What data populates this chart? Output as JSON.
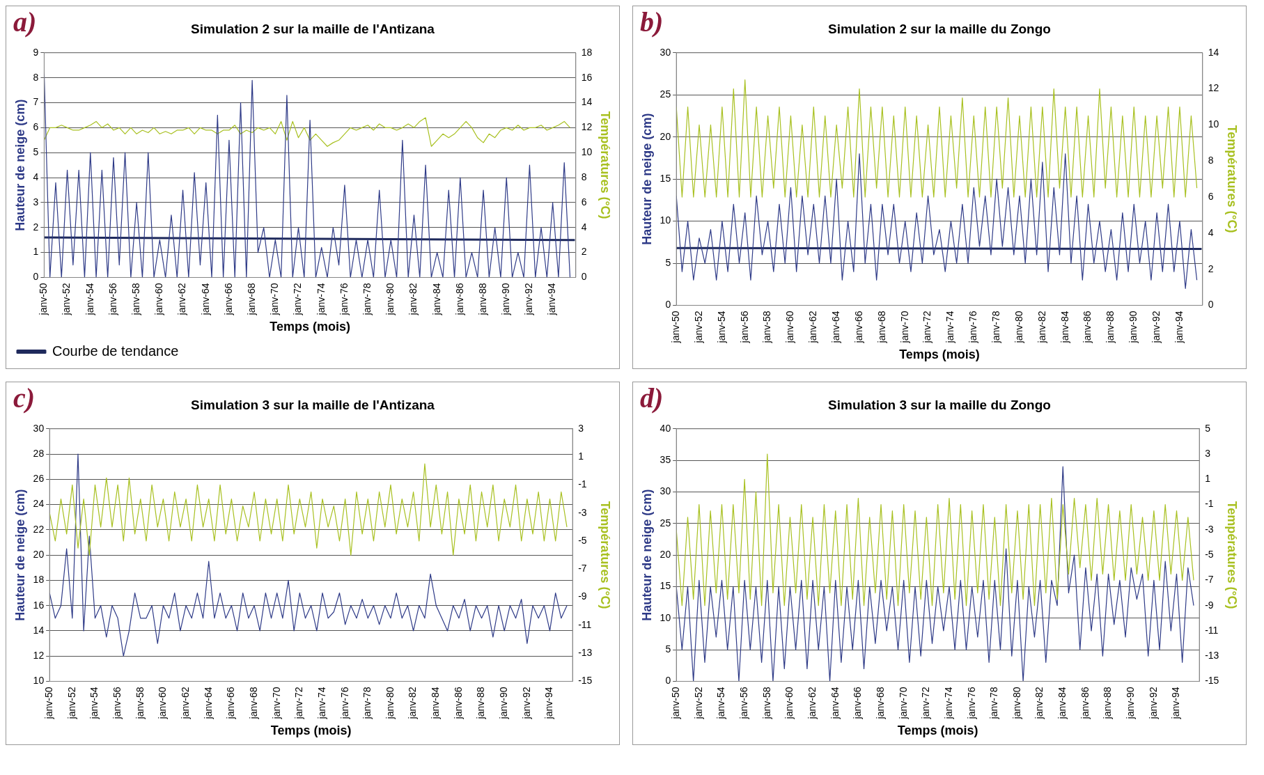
{
  "chart_data": [
    {
      "type": "line",
      "title": "Simulation 2 sur la maille de l'Antizana",
      "annotations": [
        "a)"
      ],
      "xlabel": "Temps (mois)",
      "ylabel": "Hauteur de neige (cm)",
      "y2label": "Températures (°C)",
      "grid": "y",
      "legend": "bottom left",
      "marker": "none",
      "line_style": "solid",
      "x": [
        "1950-01",
        "1950-07",
        "1951-01",
        "1951-07",
        "1952-01",
        "1952-07",
        "1953-01",
        "1953-07",
        "1954-01",
        "1954-07",
        "1955-01",
        "1955-07",
        "1956-01",
        "1956-07",
        "1957-01",
        "1957-07",
        "1958-01",
        "1958-07",
        "1959-01",
        "1959-07",
        "1960-01",
        "1960-07",
        "1961-01",
        "1961-07",
        "1962-01",
        "1962-07",
        "1963-01",
        "1963-07",
        "1964-01",
        "1964-07",
        "1965-01",
        "1965-07",
        "1966-01",
        "1966-07",
        "1967-01",
        "1967-07",
        "1968-01",
        "1968-07",
        "1969-01",
        "1969-07",
        "1970-01",
        "1970-07",
        "1971-01",
        "1971-07",
        "1972-01",
        "1972-07",
        "1973-01",
        "1973-07",
        "1974-01",
        "1974-07",
        "1975-01",
        "1975-07",
        "1976-01",
        "1976-07",
        "1977-01",
        "1977-07",
        "1978-01",
        "1978-07",
        "1979-01",
        "1979-07",
        "1980-01",
        "1980-07",
        "1981-01",
        "1981-07",
        "1982-01",
        "1982-07",
        "1983-01",
        "1983-07",
        "1984-01",
        "1984-07",
        "1985-01",
        "1985-07",
        "1986-01",
        "1986-07",
        "1987-01",
        "1987-07",
        "1988-01",
        "1988-07",
        "1989-01",
        "1989-07",
        "1990-01",
        "1990-07",
        "1991-01",
        "1991-07",
        "1992-01",
        "1992-07",
        "1993-01",
        "1993-07",
        "1994-01",
        "1994-07",
        "1995-01",
        "1995-07"
      ],
      "xlim": [
        "1950-01",
        "1996-01"
      ],
      "xticks": [
        {
          "value": "1950-01",
          "label": "janv-50"
        },
        {
          "value": "1952-01",
          "label": "janv-52"
        },
        {
          "value": "1954-01",
          "label": "janv-54"
        },
        {
          "value": "1956-01",
          "label": "janv-56"
        },
        {
          "value": "1958-01",
          "label": "janv-58"
        },
        {
          "value": "1960-01",
          "label": "janv-60"
        },
        {
          "value": "1962-01",
          "label": "janv-62"
        },
        {
          "value": "1964-01",
          "label": "janv-64"
        },
        {
          "value": "1966-01",
          "label": "janv-66"
        },
        {
          "value": "1968-01",
          "label": "janv-68"
        },
        {
          "value": "1970-01",
          "label": "janv-70"
        },
        {
          "value": "1972-01",
          "label": "janv-72"
        },
        {
          "value": "1974-01",
          "label": "janv-74"
        },
        {
          "value": "1976-01",
          "label": "janv-76"
        },
        {
          "value": "1978-01",
          "label": "janv-78"
        },
        {
          "value": "1980-01",
          "label": "janv-80"
        },
        {
          "value": "1982-01",
          "label": "janv-82"
        },
        {
          "value": "1984-01",
          "label": "janv-84"
        },
        {
          "value": "1986-01",
          "label": "janv-86"
        },
        {
          "value": "1988-01",
          "label": "janv-88"
        },
        {
          "value": "1990-01",
          "label": "janv-90"
        },
        {
          "value": "1992-01",
          "label": "janv-92"
        },
        {
          "value": "1994-01",
          "label": "janv-94"
        }
      ],
      "ylim": [
        0,
        9
      ],
      "yticks": [
        0,
        1,
        2,
        3,
        4,
        5,
        6,
        7,
        8,
        9
      ],
      "y2lim": [
        0,
        18
      ],
      "y2ticks": [
        0,
        2,
        4,
        6,
        8,
        10,
        12,
        14,
        16,
        18
      ],
      "series": [
        {
          "color": "#2e3a87",
          "values": [
            8.2,
            0,
            3.8,
            0,
            4.3,
            0.5,
            4.3,
            0,
            5,
            0,
            4.3,
            0,
            4.8,
            0.5,
            5,
            0,
            3,
            0,
            5,
            0,
            1.5,
            0,
            2.5,
            0,
            3.5,
            0,
            4.2,
            0.5,
            3.8,
            0,
            6.5,
            0,
            5.5,
            0,
            7,
            0,
            7.9,
            1,
            2,
            0,
            1.5,
            0,
            7.3,
            0,
            2,
            0,
            6.3,
            0,
            1.2,
            0,
            2,
            0.5,
            3.7,
            0,
            1.5,
            0,
            1.5,
            0,
            3.5,
            0,
            1.5,
            0,
            5.5,
            0,
            2.5,
            0,
            4.5,
            0,
            1,
            0,
            3.5,
            0,
            4,
            0,
            1,
            0,
            3.5,
            0,
            2,
            0,
            4,
            0,
            1,
            0,
            4.5,
            0,
            2,
            0,
            3,
            0,
            4.6,
            0
          ]
        },
        {
          "color": "#a8c020",
          "axis": "y2",
          "values": [
            11,
            12,
            12,
            12.2,
            12,
            11.8,
            11.8,
            12,
            12.2,
            12.5,
            12,
            12.3,
            11.8,
            12,
            11.5,
            12,
            11.5,
            11.8,
            11.6,
            12,
            11.5,
            11.7,
            11.5,
            11.8,
            11.8,
            12,
            11.5,
            12,
            11.8,
            11.8,
            11.5,
            11.8,
            11.8,
            12.2,
            11.5,
            11.8,
            11.6,
            12,
            11.8,
            12,
            11.5,
            12.5,
            11,
            12.5,
            11.2,
            12,
            11,
            11.5,
            11,
            10.5,
            10.8,
            11,
            11.5,
            12,
            11.8,
            12,
            12.2,
            11.8,
            12.3,
            12,
            12,
            11.8,
            12,
            12.3,
            12,
            12.5,
            12.8,
            10.5,
            11,
            11.5,
            11.2,
            11.5,
            12,
            12.5,
            12,
            11.2,
            10.8,
            11.5,
            11.2,
            11.8,
            12,
            11.8,
            12.2,
            11.8,
            12,
            12,
            12.2,
            11.8,
            12,
            12.2,
            12.5,
            12
          ]
        },
        {
          "name": "Courbe de tendance",
          "color": "#1f2a5c",
          "x": [
            "1950-01",
            "1995-12"
          ],
          "values": [
            1.6,
            1.5
          ]
        }
      ]
    },
    {
      "type": "line",
      "title": "Simulation 2 sur la maille du Zongo",
      "annotations": [
        "b)"
      ],
      "xlabel": "Temps (mois)",
      "ylabel": "Hauteur de neige (cm)",
      "y2label": "Températures (°C)",
      "grid": "y",
      "marker": "none",
      "line_style": "solid",
      "x": [
        "1950-01",
        "1950-07",
        "1951-01",
        "1951-07",
        "1952-01",
        "1952-07",
        "1953-01",
        "1953-07",
        "1954-01",
        "1954-07",
        "1955-01",
        "1955-07",
        "1956-01",
        "1956-07",
        "1957-01",
        "1957-07",
        "1958-01",
        "1958-07",
        "1959-01",
        "1959-07",
        "1960-01",
        "1960-07",
        "1961-01",
        "1961-07",
        "1962-01",
        "1962-07",
        "1963-01",
        "1963-07",
        "1964-01",
        "1964-07",
        "1965-01",
        "1965-07",
        "1966-01",
        "1966-07",
        "1967-01",
        "1967-07",
        "1968-01",
        "1968-07",
        "1969-01",
        "1969-07",
        "1970-01",
        "1970-07",
        "1971-01",
        "1971-07",
        "1972-01",
        "1972-07",
        "1973-01",
        "1973-07",
        "1974-01",
        "1974-07",
        "1975-01",
        "1975-07",
        "1976-01",
        "1976-07",
        "1977-01",
        "1977-07",
        "1978-01",
        "1978-07",
        "1979-01",
        "1979-07",
        "1980-01",
        "1980-07",
        "1981-01",
        "1981-07",
        "1982-01",
        "1982-07",
        "1983-01",
        "1983-07",
        "1984-01",
        "1984-07",
        "1985-01",
        "1985-07",
        "1986-01",
        "1986-07",
        "1987-01",
        "1987-07",
        "1988-01",
        "1988-07",
        "1989-01",
        "1989-07",
        "1990-01",
        "1990-07",
        "1991-01",
        "1991-07",
        "1992-01",
        "1992-07",
        "1993-01",
        "1993-07",
        "1994-01",
        "1994-07",
        "1995-01",
        "1995-07"
      ],
      "xlim": [
        "1950-01",
        "1996-01"
      ],
      "xticks": [
        {
          "value": "1950-01",
          "label": "janv-50"
        },
        {
          "value": "1952-01",
          "label": "janv-52"
        },
        {
          "value": "1954-01",
          "label": "janv-54"
        },
        {
          "value": "1956-01",
          "label": "janv-56"
        },
        {
          "value": "1958-01",
          "label": "janv-58"
        },
        {
          "value": "1960-01",
          "label": "janv-60"
        },
        {
          "value": "1962-01",
          "label": "janv-62"
        },
        {
          "value": "1964-01",
          "label": "janv-64"
        },
        {
          "value": "1966-01",
          "label": "janv-66"
        },
        {
          "value": "1968-01",
          "label": "janv-68"
        },
        {
          "value": "1970-01",
          "label": "janv-70"
        },
        {
          "value": "1972-01",
          "label": "janv-72"
        },
        {
          "value": "1974-01",
          "label": "janv-74"
        },
        {
          "value": "1976-01",
          "label": "janv-76"
        },
        {
          "value": "1978-01",
          "label": "janv-78"
        },
        {
          "value": "1980-01",
          "label": "janv-80"
        },
        {
          "value": "1982-01",
          "label": "janv-82"
        },
        {
          "value": "1984-01",
          "label": "janv-84"
        },
        {
          "value": "1986-01",
          "label": "janv-86"
        },
        {
          "value": "1988-01",
          "label": "janv-88"
        },
        {
          "value": "1990-01",
          "label": "janv-90"
        },
        {
          "value": "1992-01",
          "label": "janv-92"
        },
        {
          "value": "1994-01",
          "label": "janv-94"
        }
      ],
      "ylim": [
        0,
        30
      ],
      "yticks": [
        0,
        5,
        10,
        15,
        20,
        25,
        30
      ],
      "y2lim": [
        0,
        14
      ],
      "y2ticks": [
        0,
        2,
        4,
        6,
        8,
        10,
        12,
        14
      ],
      "series": [
        {
          "color": "#a8c020",
          "axis": "y2",
          "values": [
            11,
            6,
            11,
            6,
            10,
            6,
            10,
            6,
            11,
            6,
            12,
            6,
            12.5,
            6,
            11,
            6,
            10.5,
            6.5,
            11,
            6,
            10.5,
            6,
            10,
            6,
            11,
            6,
            10.5,
            6,
            10,
            6.5,
            11,
            6,
            12,
            6,
            11,
            6.5,
            11,
            6,
            10.5,
            6,
            11,
            6,
            10.5,
            6,
            10,
            6,
            11,
            6,
            10.5,
            6.5,
            11.5,
            6,
            10.5,
            6,
            11,
            6,
            11,
            6.5,
            11.5,
            6,
            10.5,
            6,
            11,
            6,
            11,
            6,
            12,
            6.5,
            11,
            6,
            11,
            6,
            10.5,
            6,
            12,
            6.5,
            11,
            6,
            10.5,
            6,
            11,
            6,
            10.5,
            6,
            10.5,
            6.5,
            11,
            6,
            11,
            6,
            10.5,
            6.5
          ]
        },
        {
          "color": "#2e3a87",
          "values": [
            13,
            4,
            10,
            3,
            8,
            5,
            9,
            3,
            10,
            4,
            12,
            5,
            11,
            3,
            13,
            6,
            10,
            4,
            12,
            5,
            14,
            4,
            13,
            6,
            12,
            5,
            13,
            5,
            15,
            3,
            10,
            4,
            18,
            5,
            12,
            3,
            12,
            6,
            12,
            5,
            10,
            4,
            11,
            5,
            13,
            6,
            9,
            4,
            10,
            5,
            12,
            5,
            14,
            7,
            13,
            6,
            15,
            7,
            14,
            6,
            13,
            5,
            15,
            6,
            17,
            4,
            14,
            6,
            18,
            5,
            13,
            3,
            12,
            5,
            10,
            4,
            9,
            3,
            11,
            4,
            12,
            5,
            10,
            3,
            11,
            4,
            12,
            4,
            10,
            2,
            9,
            3
          ]
        },
        {
          "color": "#1f2a5c",
          "x": [
            "1950-01",
            "1995-12"
          ],
          "values": [
            6.8,
            6.7
          ]
        }
      ]
    },
    {
      "type": "line",
      "title": "Simulation 3 sur la maille de l'Antizana",
      "annotations": [
        "c)"
      ],
      "xlabel": "Temps (mois)",
      "ylabel": "Hauteur de neige (cm)",
      "y2label": "Températures (°C)",
      "grid": "y",
      "marker": "none",
      "line_style": "solid",
      "x": [
        "1950-01",
        "1950-07",
        "1951-01",
        "1951-07",
        "1952-01",
        "1952-07",
        "1953-01",
        "1953-07",
        "1954-01",
        "1954-07",
        "1955-01",
        "1955-07",
        "1956-01",
        "1956-07",
        "1957-01",
        "1957-07",
        "1958-01",
        "1958-07",
        "1959-01",
        "1959-07",
        "1960-01",
        "1960-07",
        "1961-01",
        "1961-07",
        "1962-01",
        "1962-07",
        "1963-01",
        "1963-07",
        "1964-01",
        "1964-07",
        "1965-01",
        "1965-07",
        "1966-01",
        "1966-07",
        "1967-01",
        "1967-07",
        "1968-01",
        "1968-07",
        "1969-01",
        "1969-07",
        "1970-01",
        "1970-07",
        "1971-01",
        "1971-07",
        "1972-01",
        "1972-07",
        "1973-01",
        "1973-07",
        "1974-01",
        "1974-07",
        "1975-01",
        "1975-07",
        "1976-01",
        "1976-07",
        "1977-01",
        "1977-07",
        "1978-01",
        "1978-07",
        "1979-01",
        "1979-07",
        "1980-01",
        "1980-07",
        "1981-01",
        "1981-07",
        "1982-01",
        "1982-07",
        "1983-01",
        "1983-07",
        "1984-01",
        "1984-07",
        "1985-01",
        "1985-07",
        "1986-01",
        "1986-07",
        "1987-01",
        "1987-07",
        "1988-01",
        "1988-07",
        "1989-01",
        "1989-07",
        "1990-01",
        "1990-07",
        "1991-01",
        "1991-07",
        "1992-01",
        "1992-07",
        "1993-01",
        "1993-07",
        "1994-01",
        "1994-07",
        "1995-01",
        "1995-07"
      ],
      "xlim": [
        "1950-01",
        "1996-01"
      ],
      "xticks": [
        {
          "value": "1950-01",
          "label": "janv-50"
        },
        {
          "value": "1952-01",
          "label": "janv-52"
        },
        {
          "value": "1954-01",
          "label": "janv-54"
        },
        {
          "value": "1956-01",
          "label": "janv-56"
        },
        {
          "value": "1958-01",
          "label": "janv-58"
        },
        {
          "value": "1960-01",
          "label": "janv-60"
        },
        {
          "value": "1962-01",
          "label": "janv-62"
        },
        {
          "value": "1964-01",
          "label": "janv-64"
        },
        {
          "value": "1966-01",
          "label": "janv-66"
        },
        {
          "value": "1968-01",
          "label": "janv-68"
        },
        {
          "value": "1970-01",
          "label": "janv-70"
        },
        {
          "value": "1972-01",
          "label": "janv-72"
        },
        {
          "value": "1974-01",
          "label": "janv-74"
        },
        {
          "value": "1976-01",
          "label": "janv-76"
        },
        {
          "value": "1978-01",
          "label": "janv-78"
        },
        {
          "value": "1980-01",
          "label": "janv-80"
        },
        {
          "value": "1982-01",
          "label": "janv-82"
        },
        {
          "value": "1984-01",
          "label": "janv-84"
        },
        {
          "value": "1986-01",
          "label": "janv-86"
        },
        {
          "value": "1988-01",
          "label": "janv-88"
        },
        {
          "value": "1990-01",
          "label": "janv-90"
        },
        {
          "value": "1992-01",
          "label": "janv-92"
        },
        {
          "value": "1994-01",
          "label": "janv-94"
        }
      ],
      "ylim": [
        10,
        30
      ],
      "yticks": [
        10,
        12,
        14,
        16,
        18,
        20,
        22,
        24,
        26,
        28,
        30
      ],
      "y2lim": [
        -15,
        3
      ],
      "y2ticks": [
        -15,
        -13,
        -11,
        -9,
        -7,
        -5,
        -3,
        -1,
        1,
        3
      ],
      "series": [
        {
          "color": "#a8c020",
          "axis": "y2",
          "values": [
            -3,
            -5,
            -2,
            -4.5,
            -1,
            -5.5,
            -2,
            -6,
            -1,
            -4,
            -0.5,
            -4,
            -1,
            -5,
            -0.5,
            -4.5,
            -2,
            -5,
            -1,
            -4,
            -2,
            -5,
            -1.5,
            -4,
            -2,
            -5,
            -1,
            -4,
            -2,
            -5,
            -1,
            -4.5,
            -2,
            -5,
            -2.5,
            -4,
            -1.5,
            -5,
            -2,
            -4.5,
            -2,
            -5,
            -1,
            -4.5,
            -2,
            -4,
            -1.5,
            -5.5,
            -2,
            -4,
            -2.5,
            -5,
            -2,
            -6,
            -1.5,
            -4.5,
            -2,
            -5,
            -1.5,
            -4,
            -1,
            -4.5,
            -2,
            -4,
            -1.5,
            -5,
            0.5,
            -4,
            -1,
            -4.5,
            -1.5,
            -6,
            -2,
            -4.5,
            -1,
            -5,
            -1.5,
            -4,
            -1,
            -5,
            -2,
            -4,
            -1,
            -5,
            -2,
            -4.5,
            -1.5,
            -5,
            -2,
            -5,
            -1.5,
            -4
          ]
        },
        {
          "color": "#2e3a87",
          "values": [
            17,
            15,
            16,
            20.5,
            15,
            28,
            14,
            21.5,
            15,
            16,
            13.5,
            16,
            15,
            12,
            14,
            17,
            15,
            15,
            16,
            13,
            16,
            15,
            17,
            14,
            16,
            15,
            17,
            15,
            19.5,
            15,
            17,
            15,
            16,
            14,
            17,
            15,
            16,
            14,
            17,
            15,
            17,
            15,
            18,
            14,
            17,
            15,
            16,
            14,
            17,
            15,
            15.5,
            17,
            14.5,
            16,
            15,
            16.5,
            15,
            16,
            14.5,
            16,
            15,
            17,
            15,
            16,
            14,
            16,
            15,
            18.5,
            16,
            15,
            14,
            16,
            15,
            16.5,
            14,
            16,
            15,
            16,
            13.5,
            16,
            14,
            16,
            15,
            16.5,
            13,
            16,
            15,
            16,
            14,
            17,
            15,
            16
          ]
        }
      ]
    },
    {
      "type": "line",
      "title": "Simulation 3 sur la maille du Zongo",
      "annotations": [
        "d)"
      ],
      "xlabel": "Temps (mois)",
      "ylabel": "Hauteur de neige (cm)",
      "y2label": "Températures (°C)",
      "grid": "y",
      "marker": "none",
      "line_style": "solid",
      "x": [
        "1950-01",
        "1950-07",
        "1951-01",
        "1951-07",
        "1952-01",
        "1952-07",
        "1953-01",
        "1953-07",
        "1954-01",
        "1954-07",
        "1955-01",
        "1955-07",
        "1956-01",
        "1956-07",
        "1957-01",
        "1957-07",
        "1958-01",
        "1958-07",
        "1959-01",
        "1959-07",
        "1960-01",
        "1960-07",
        "1961-01",
        "1961-07",
        "1962-01",
        "1962-07",
        "1963-01",
        "1963-07",
        "1964-01",
        "1964-07",
        "1965-01",
        "1965-07",
        "1966-01",
        "1966-07",
        "1967-01",
        "1967-07",
        "1968-01",
        "1968-07",
        "1969-01",
        "1969-07",
        "1970-01",
        "1970-07",
        "1971-01",
        "1971-07",
        "1972-01",
        "1972-07",
        "1973-01",
        "1973-07",
        "1974-01",
        "1974-07",
        "1975-01",
        "1975-07",
        "1976-01",
        "1976-07",
        "1977-01",
        "1977-07",
        "1978-01",
        "1978-07",
        "1979-01",
        "1979-07",
        "1980-01",
        "1980-07",
        "1981-01",
        "1981-07",
        "1982-01",
        "1982-07",
        "1983-01",
        "1983-07",
        "1984-01",
        "1984-07",
        "1985-01",
        "1985-07",
        "1986-01",
        "1986-07",
        "1987-01",
        "1987-07",
        "1988-01",
        "1988-07",
        "1989-01",
        "1989-07",
        "1990-01",
        "1990-07",
        "1991-01",
        "1991-07",
        "1992-01",
        "1992-07",
        "1993-01",
        "1993-07",
        "1994-01",
        "1994-07",
        "1995-01",
        "1995-07"
      ],
      "xlim": [
        "1950-01",
        "1996-01"
      ],
      "xticks": [
        {
          "value": "1950-01",
          "label": "janv-50"
        },
        {
          "value": "1952-01",
          "label": "janv-52"
        },
        {
          "value": "1954-01",
          "label": "janv-54"
        },
        {
          "value": "1956-01",
          "label": "janv-56"
        },
        {
          "value": "1958-01",
          "label": "janv-58"
        },
        {
          "value": "1960-01",
          "label": "janv-60"
        },
        {
          "value": "1962-01",
          "label": "janv-62"
        },
        {
          "value": "1964-01",
          "label": "janv-64"
        },
        {
          "value": "1966-01",
          "label": "janv-66"
        },
        {
          "value": "1968-01",
          "label": "janv-68"
        },
        {
          "value": "1970-01",
          "label": "janv-70"
        },
        {
          "value": "1972-01",
          "label": "janv-72"
        },
        {
          "value": "1974-01",
          "label": "janv-74"
        },
        {
          "value": "1976-01",
          "label": "janv-76"
        },
        {
          "value": "1978-01",
          "label": "janv-78"
        },
        {
          "value": "1980-01",
          "label": "janv-80"
        },
        {
          "value": "1982-01",
          "label": "janv-82"
        },
        {
          "value": "1984-01",
          "label": "janv-84"
        },
        {
          "value": "1986-01",
          "label": "janv-86"
        },
        {
          "value": "1988-01",
          "label": "janv-88"
        },
        {
          "value": "1990-01",
          "label": "janv-90"
        },
        {
          "value": "1992-01",
          "label": "janv-92"
        },
        {
          "value": "1994-01",
          "label": "janv-94"
        }
      ],
      "ylim": [
        0,
        40
      ],
      "yticks": [
        0,
        5,
        10,
        15,
        20,
        25,
        30,
        35,
        40
      ],
      "y2lim": [
        -15,
        5
      ],
      "y2ticks": [
        -15,
        -13,
        -11,
        -9,
        -7,
        -5,
        -3,
        -1,
        1,
        3,
        5
      ],
      "series": [
        {
          "color": "#a8c020",
          "axis": "y2",
          "values": [
            -3,
            -9,
            -2,
            -8.5,
            -1,
            -9,
            -1.5,
            -8,
            -1,
            -8.5,
            -1,
            -8,
            1,
            -8.5,
            0,
            -9,
            3,
            -8,
            -1,
            -9,
            -2,
            -8,
            -1,
            -8.5,
            -2,
            -9,
            -1,
            -8,
            -1.5,
            -9,
            -1,
            -8.5,
            -0.5,
            -9,
            -2,
            -8,
            -1,
            -8.5,
            -1.5,
            -9,
            -1,
            -8,
            -1.5,
            -8.5,
            -2,
            -9,
            -1,
            -8,
            -0.5,
            -8.5,
            -1,
            -9,
            -1.5,
            -8,
            -1,
            -8.5,
            -2,
            -9,
            -1,
            -8,
            -1.5,
            -8.5,
            -1,
            -9,
            -1,
            -8,
            -0.5,
            -8.5,
            -1,
            -6.5,
            -0.5,
            -6,
            -1,
            -7,
            -0.5,
            -6.5,
            -1,
            -7,
            -1.5,
            -7,
            -1,
            -6.5,
            -2,
            -7,
            -1.5,
            -7,
            -1,
            -6.5,
            -1.5,
            -7,
            -2,
            -7
          ]
        },
        {
          "color": "#2e3a87",
          "values": [
            15,
            5,
            15,
            0,
            16,
            3,
            15,
            7,
            16,
            5,
            15,
            0,
            16,
            5,
            15,
            3,
            16,
            0,
            15,
            2,
            15,
            5,
            16,
            2,
            16,
            5,
            15,
            0,
            16,
            3,
            15,
            5,
            16,
            2,
            15,
            6,
            16,
            8,
            15,
            5,
            16,
            3,
            15,
            4,
            16,
            6,
            15,
            8,
            15,
            5,
            16,
            5,
            15,
            7,
            16,
            3,
            16,
            5,
            21,
            4,
            16,
            0,
            15,
            7,
            16,
            3,
            16,
            12,
            34,
            14,
            20,
            5,
            18,
            8,
            17,
            4,
            17,
            9,
            16,
            7,
            18,
            13,
            17,
            4,
            16,
            5,
            19,
            8,
            17,
            3,
            18,
            12
          ]
        }
      ]
    }
  ]
}
